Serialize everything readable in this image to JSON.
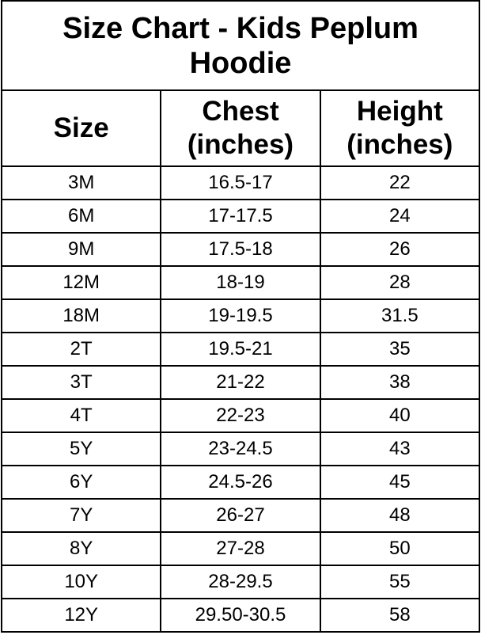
{
  "title": "Size Chart - Kids Peplum Hoodie",
  "columns": [
    "Size",
    "Chest (inches)",
    "Height (inches)"
  ],
  "columns_lines": [
    [
      "Size"
    ],
    [
      "Chest",
      "(inches)"
    ],
    [
      "Height",
      "(inches)"
    ]
  ],
  "rows": [
    [
      "3M",
      "16.5-17",
      "22"
    ],
    [
      "6M",
      "17-17.5",
      "24"
    ],
    [
      "9M",
      "17.5-18",
      "26"
    ],
    [
      "12M",
      "18-19",
      "28"
    ],
    [
      "18M",
      "19-19.5",
      "31.5"
    ],
    [
      "2T",
      "19.5-21",
      "35"
    ],
    [
      "3T",
      "21-22",
      "38"
    ],
    [
      "4T",
      "22-23",
      "40"
    ],
    [
      "5Y",
      "23-24.5",
      "43"
    ],
    [
      "6Y",
      "24.5-26",
      "45"
    ],
    [
      "7Y",
      "26-27",
      "48"
    ],
    [
      "8Y",
      "27-28",
      "50"
    ],
    [
      "10Y",
      "28-29.5",
      "55"
    ],
    [
      "12Y",
      "29.50-30.5",
      "58"
    ]
  ]
}
